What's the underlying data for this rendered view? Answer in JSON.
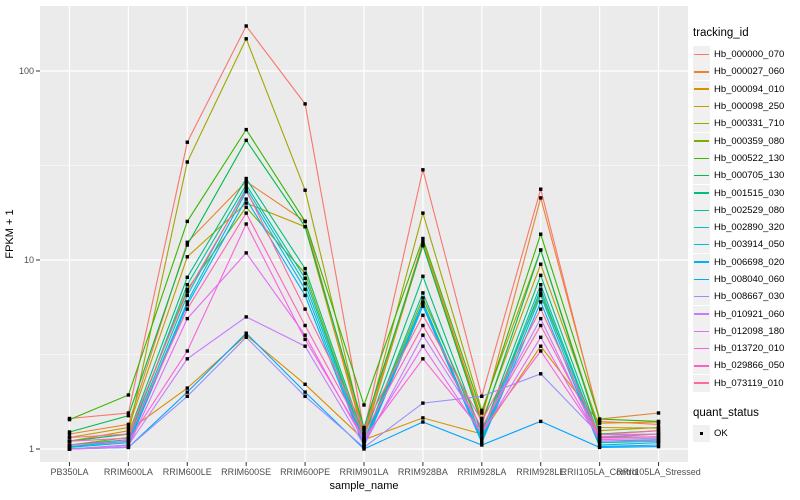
{
  "figure": {
    "panel_bg": "#EBEBEB",
    "grid_color": "#FFFFFF",
    "tick_color": "#333333",
    "tick_label_color": "#4D4D4D",
    "marker_color": "#000000",
    "y_tick_labels": [
      "1",
      "10",
      "100"
    ]
  },
  "legend": {
    "tracking_title": "tracking_id",
    "quant_title": "quant_status",
    "quant_ok_label": "OK"
  },
  "chart_data": {
    "type": "line",
    "title": "",
    "xlabel": "sample_name",
    "ylabel": "FPKM + 1",
    "y_scale": "log10",
    "y_ticks": [
      1,
      10,
      100
    ],
    "y_minor_ticks": [
      3.1623,
      31.623
    ],
    "ylim": [
      0.85,
      220
    ],
    "grid": true,
    "legend_position": "right",
    "point_legend": {
      "title": "quant_status",
      "entries": [
        "OK"
      ]
    },
    "categories": [
      "PB350LA",
      "RRIM600LA",
      "RRIM600LE",
      "RRIM600SE",
      "RRIM600PE",
      "RRIM901LA",
      "RRIM928BA",
      "RRIM928LA",
      "RRIM928LE",
      "RRII105LA_Control",
      "RRII105LA_Stressed"
    ],
    "series": [
      {
        "name": "Hb_000000_070",
        "color": "#F8766D",
        "values": [
          1.45,
          1.55,
          42,
          173,
          67,
          1.25,
          30,
          1.9,
          23.7,
          1.4,
          1.35
        ]
      },
      {
        "name": "Hb_000027_060",
        "color": "#EA8331",
        "values": [
          1.2,
          1.35,
          12.4,
          26,
          16,
          1.2,
          12.5,
          1.45,
          21.3,
          1.44,
          1.55
        ]
      },
      {
        "name": "Hb_000094_010",
        "color": "#D89000",
        "values": [
          1.1,
          1.25,
          2.1,
          4.0,
          2.2,
          1.12,
          1.46,
          1.2,
          3.5,
          1.37,
          1.39
        ]
      },
      {
        "name": "Hb_000098_250",
        "color": "#C09B00",
        "values": [
          1.15,
          1.3,
          10.4,
          20,
          15,
          1.15,
          12,
          1.4,
          9.5,
          1.3,
          1.29
        ]
      },
      {
        "name": "Hb_000331_710",
        "color": "#A3A500",
        "values": [
          1.1,
          1.2,
          33,
          148,
          23.4,
          1.2,
          17.7,
          1.6,
          11.3,
          1.25,
          1.3
        ]
      },
      {
        "name": "Hb_000359_080",
        "color": "#7CAE00",
        "values": [
          1.05,
          1.15,
          7.0,
          19,
          8.5,
          1.1,
          6.3,
          1.25,
          6.7,
          1.15,
          1.2
        ]
      },
      {
        "name": "Hb_000522_130",
        "color": "#39B600",
        "values": [
          1.43,
          1.93,
          16,
          49,
          16,
          1.71,
          13,
          1.55,
          13.7,
          1.44,
          1.4
        ]
      },
      {
        "name": "Hb_000705_130",
        "color": "#00BB4E",
        "values": [
          1.23,
          1.5,
          12.0,
          43,
          15,
          1.3,
          11.9,
          1.35,
          11.3,
          1.2,
          1.25
        ]
      },
      {
        "name": "Hb_001515_030",
        "color": "#00BF7D",
        "values": [
          1.1,
          1.2,
          8.1,
          27,
          9.0,
          1.15,
          8.2,
          1.2,
          8.3,
          1.15,
          1.16
        ]
      },
      {
        "name": "Hb_002529_080",
        "color": "#00C1A3",
        "values": [
          1.05,
          1.12,
          7.4,
          25,
          8.0,
          1.1,
          6.7,
          1.15,
          7.4,
          1.1,
          1.12
        ]
      },
      {
        "name": "Hb_002890_320",
        "color": "#00BFC4",
        "values": [
          1.03,
          1.1,
          6.5,
          24,
          7.5,
          1.08,
          6.0,
          1.12,
          7.0,
          1.08,
          1.1
        ]
      },
      {
        "name": "Hb_003914_050",
        "color": "#00BADE",
        "values": [
          1.02,
          1.08,
          6.0,
          23,
          7.0,
          1.05,
          5.9,
          1.1,
          6.5,
          1.05,
          1.08
        ]
      },
      {
        "name": "Hb_006698_020",
        "color": "#00B0F6",
        "values": [
          1.0,
          1.05,
          5.8,
          21,
          6.5,
          1.03,
          5.7,
          1.08,
          6.0,
          1.03,
          1.05
        ]
      },
      {
        "name": "Hb_008040_060",
        "color": "#00A5FF",
        "values": [
          1.0,
          1.02,
          2.0,
          4.1,
          2.0,
          1.0,
          1.39,
          1.05,
          1.4,
          1.02,
          1.03
        ]
      },
      {
        "name": "Hb_008667_030",
        "color": "#9590FF",
        "values": [
          1.0,
          1.02,
          1.9,
          3.9,
          1.9,
          1.02,
          1.75,
          1.9,
          2.5,
          1.19,
          1.2
        ]
      },
      {
        "name": "Hb_010921_060",
        "color": "#C77CFF",
        "values": [
          1.0,
          1.05,
          3.0,
          5.0,
          3.5,
          1.05,
          4.0,
          1.3,
          4.9,
          1.1,
          1.1
        ]
      },
      {
        "name": "Hb_012098_180",
        "color": "#E76BF3",
        "values": [
          1.0,
          1.03,
          4.9,
          10.9,
          4.0,
          1.1,
          3.5,
          1.2,
          3.9,
          1.12,
          1.14
        ]
      },
      {
        "name": "Hb_013720_010",
        "color": "#FA62DB",
        "values": [
          1.05,
          1.1,
          3.3,
          15.5,
          3.8,
          1.14,
          3.0,
          1.25,
          3.3,
          1.14,
          1.16
        ]
      },
      {
        "name": "Hb_029866_050",
        "color": "#FF62BC",
        "values": [
          1.1,
          1.14,
          5.5,
          17.7,
          4.5,
          1.2,
          4.5,
          1.3,
          4.5,
          1.16,
          1.2
        ]
      },
      {
        "name": "Hb_073119_010",
        "color": "#FF6A98",
        "values": [
          1.15,
          1.2,
          6.8,
          23.5,
          5.5,
          1.29,
          5.1,
          1.4,
          5.5,
          1.19,
          1.25
        ]
      }
    ]
  }
}
